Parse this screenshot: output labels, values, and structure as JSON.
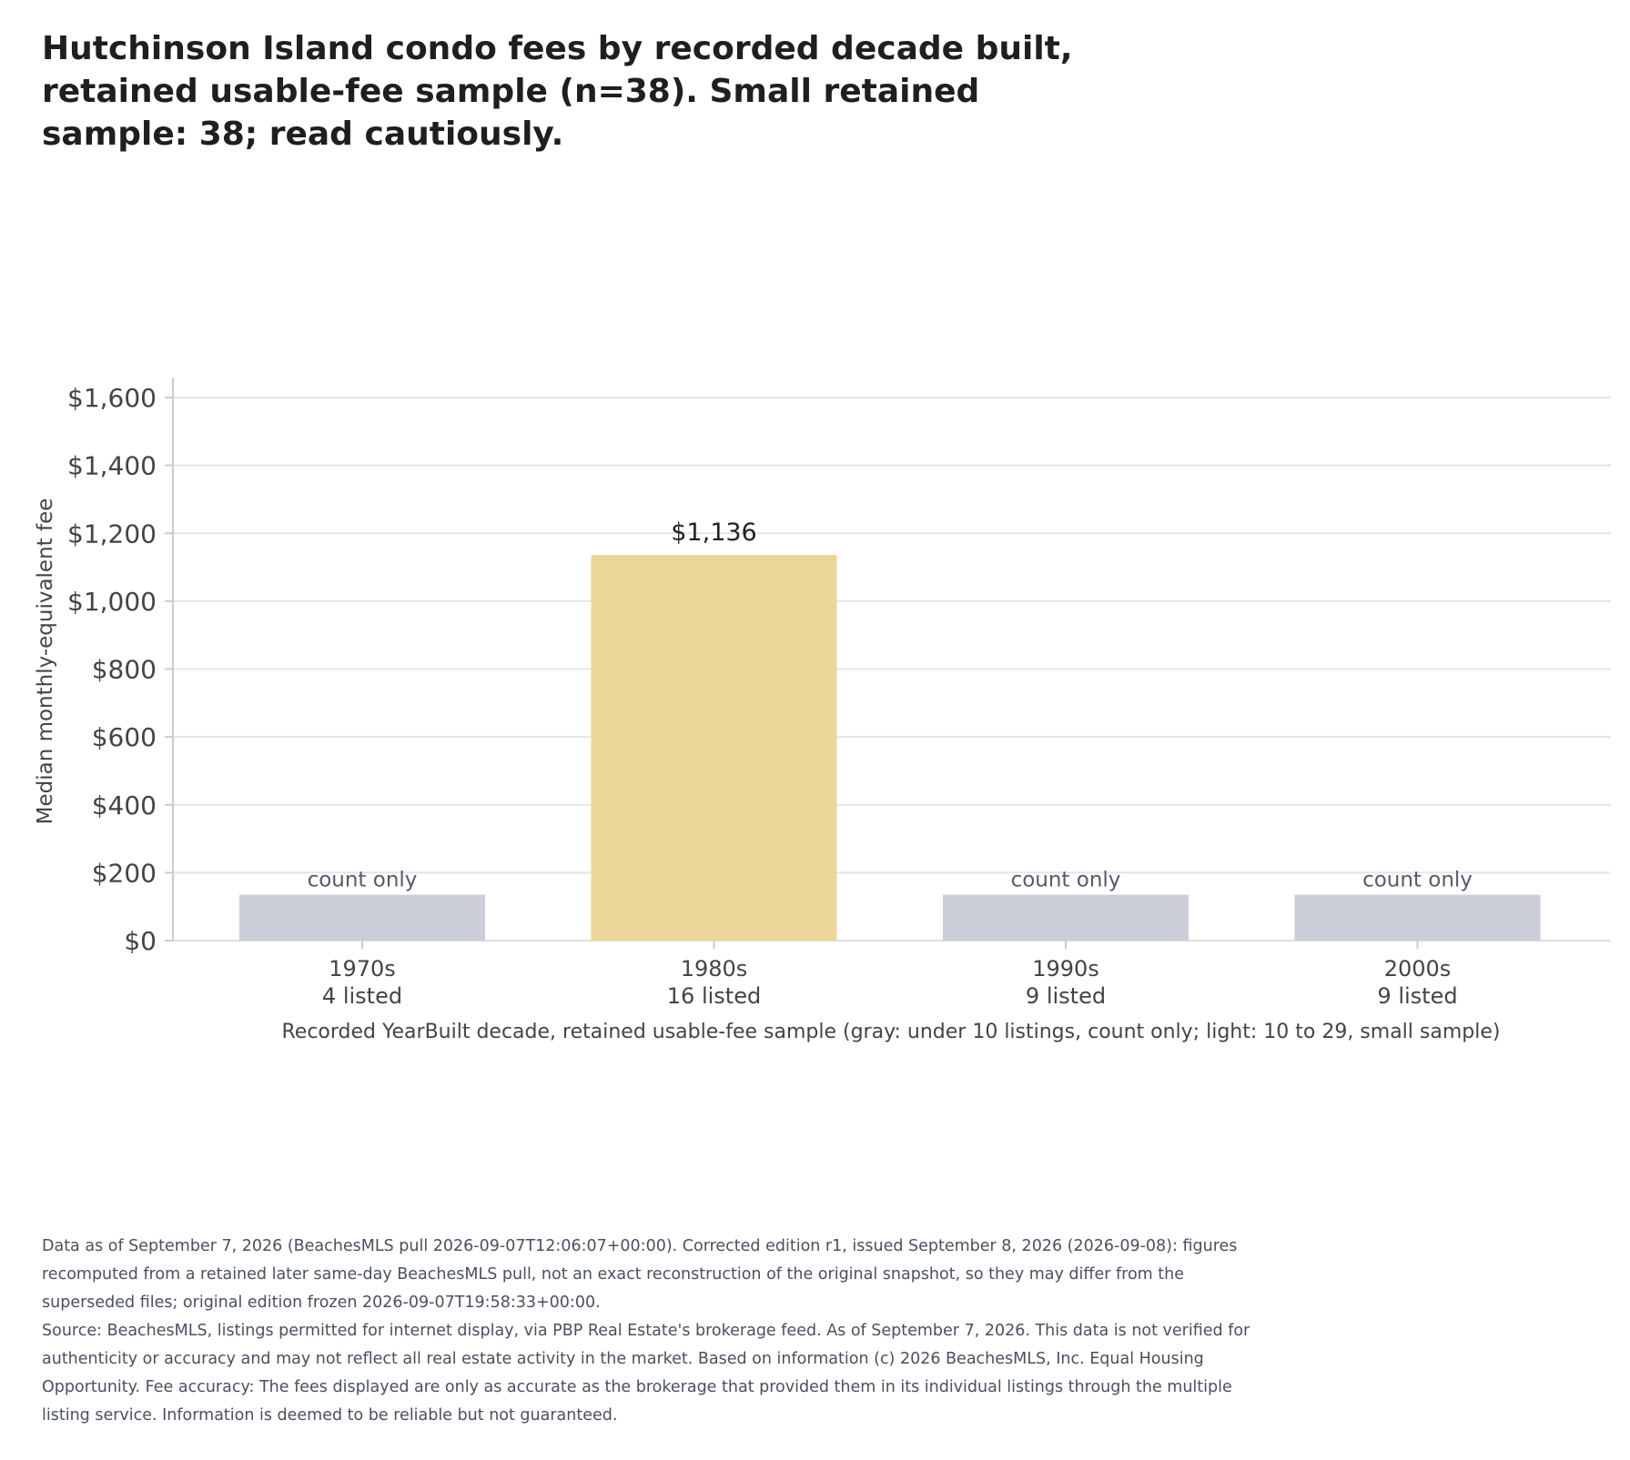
{
  "chart_data": {
    "type": "bar",
    "title": "Hutchinson Island condo fees by recorded decade built, retained usable-fee sample (n=38). Small retained sample: 38; read cautiously.",
    "ylabel": "Median monthly-equivalent fee",
    "xlabel": "Recorded YearBuilt decade, retained usable-fee sample (gray: under 10 listings, count only; light: 10 to 29, small sample)",
    "ylim": [
      0,
      1650
    ],
    "yticks": [
      0,
      200,
      400,
      600,
      800,
      1000,
      1200,
      1400,
      1600
    ],
    "ytick_labels": [
      "$0",
      "$200",
      "$400",
      "$600",
      "$800",
      "$1,000",
      "$1,200",
      "$1,400",
      "$1,600"
    ],
    "grid": true,
    "categories": [
      "1970s",
      "1980s",
      "1990s",
      "2000s"
    ],
    "counts": [
      "4 listed",
      "16 listed",
      "9 listed",
      "9 listed"
    ],
    "values": [
      null,
      1136,
      null,
      null
    ],
    "bar_labels": [
      "count only",
      "$1,136",
      "count only",
      "count only"
    ],
    "count_only_bar_height": 135,
    "colors": {
      "count_only": "#cbced9",
      "small_sample": "#ecd697",
      "grid": "#e4e4ee",
      "axis_text": "#444444",
      "label_text": "#222222",
      "count_only_label": "#555b6a"
    }
  },
  "footer": {
    "edition_note": "Data as of September 7, 2026 (BeachesMLS pull 2026-09-07T12:06:07+00:00). Corrected edition r1, issued September 8, 2026 (2026-09-08): figures recomputed from a retained later same-day BeachesMLS pull, not an exact reconstruction of the original snapshot, so they may differ from the superseded files; original edition frozen 2026-09-07T19:58:33+00:00.",
    "source_note": "Source: BeachesMLS, listings permitted for internet display, via PBP Real Estate's brokerage feed. As of September 7, 2026. This data is not verified for authenticity or accuracy and may not reflect all real estate activity in the market. Based on information (c) 2026 BeachesMLS, Inc. Equal Housing Opportunity. Fee accuracy: The fees displayed are only as accurate as the brokerage that provided them in its individual listings through the multiple listing service. Information is deemed to be reliable but not guaranteed."
  }
}
